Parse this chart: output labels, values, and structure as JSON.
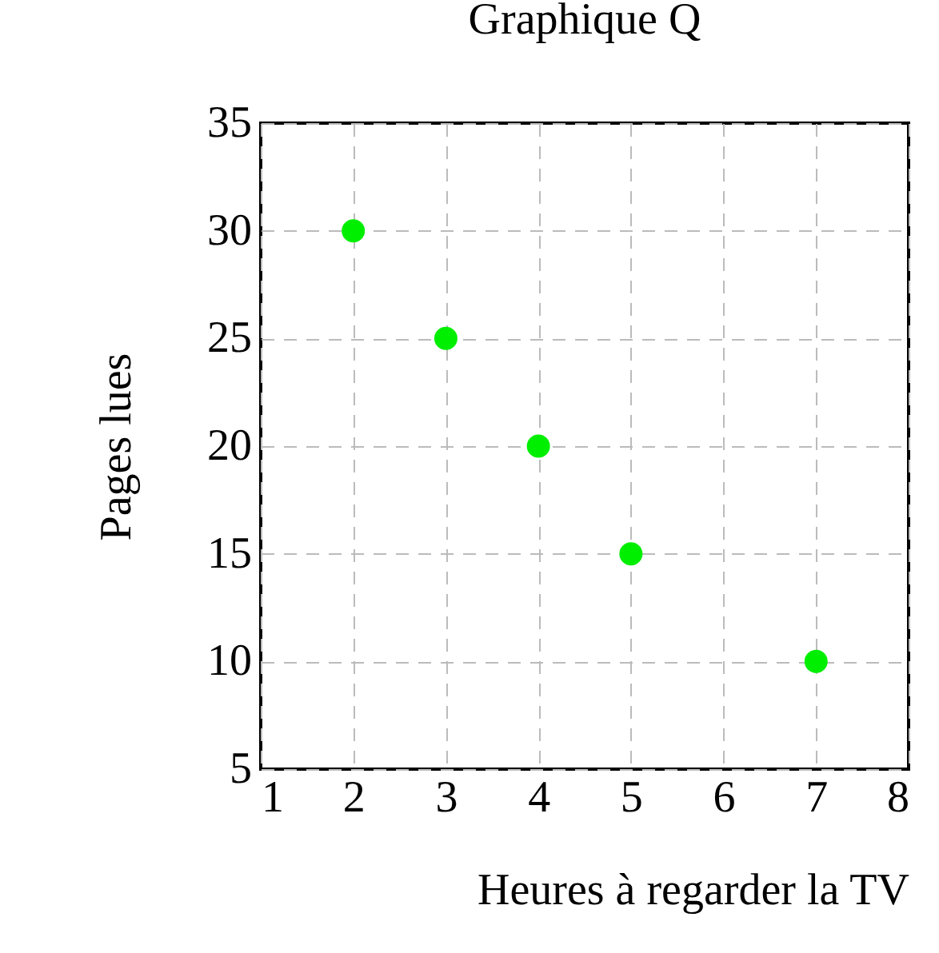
{
  "chart_data": {
    "type": "scatter",
    "title": "Graphique Q",
    "xlabel": "Heures à regarder la TV",
    "ylabel": "Pages lues",
    "x": [
      2,
      3,
      4,
      5,
      7
    ],
    "series": [
      {
        "color": "#00ee00",
        "values": [
          30,
          25,
          20,
          15,
          10
        ]
      }
    ],
    "xlim": [
      1,
      8
    ],
    "xticks": [
      1,
      2,
      3,
      4,
      5,
      6,
      7,
      8
    ],
    "ylim": [
      5,
      35
    ],
    "yticks": [
      5,
      10,
      15,
      20,
      25,
      30,
      35
    ],
    "grid": true,
    "marker": "circle",
    "legend": false
  }
}
